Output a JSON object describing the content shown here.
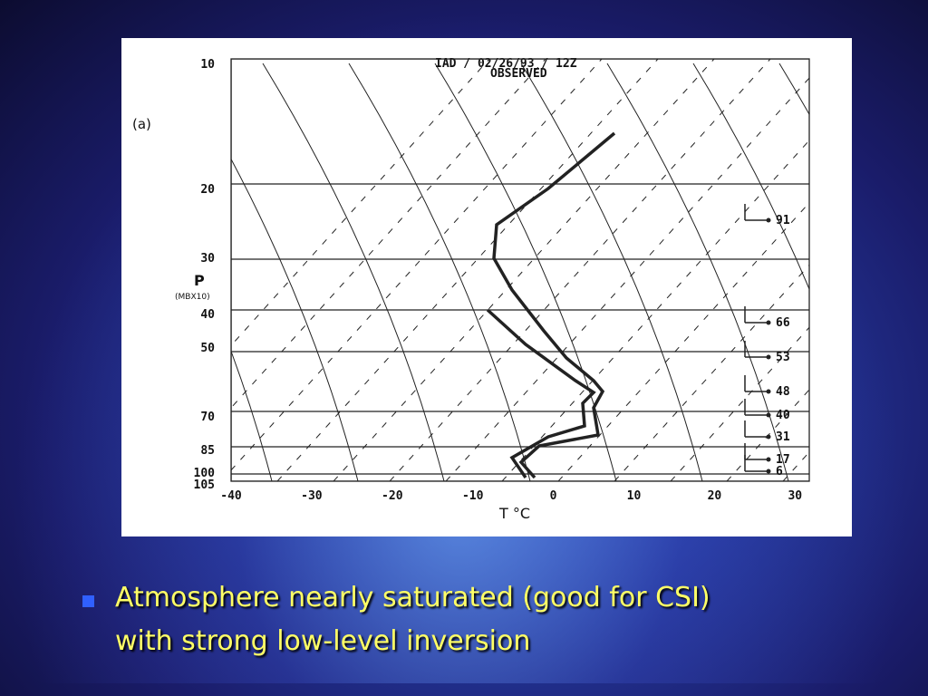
{
  "figure": {
    "title": "IAD / 02/26/93 / 12Z",
    "subtitle": "OBSERVED",
    "panel_label": "(a)",
    "y_axis_label": "P",
    "y_axis_unit": "(MBX10)",
    "y_tick_labels": [
      "10",
      "20",
      "30",
      "40",
      "50",
      "70",
      "85",
      "100",
      "105"
    ],
    "x_tick_labels": [
      "-40",
      "-30",
      "-20",
      "-10",
      "0",
      "10",
      "20",
      "30"
    ],
    "x_axis_label": "T °C",
    "wind_labels": [
      "91",
      "66",
      "53",
      "48",
      "40",
      "31",
      "17",
      "6"
    ]
  },
  "bullets": [
    "Atmosphere nearly saturated (good for CSI)",
    "with strong low-level inversion"
  ]
}
